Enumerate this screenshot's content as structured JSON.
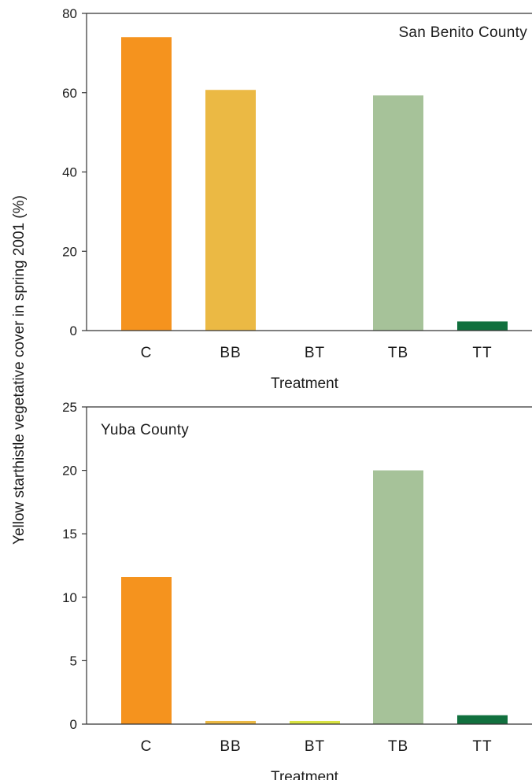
{
  "chart_data": [
    {
      "type": "bar",
      "title": "San Benito County",
      "xlabel": "Treatment",
      "categories": [
        "C",
        "BB",
        "BT",
        "TB",
        "TT"
      ],
      "values": [
        74,
        60.7,
        0,
        59.3,
        2.3
      ],
      "colors": [
        "#F5931E",
        "#EBB944",
        "#D9E342",
        "#A6C299",
        "#11703E"
      ],
      "ylim": [
        0,
        80
      ],
      "yticks": [
        0,
        20,
        40,
        60,
        80
      ],
      "title_position": "top-right"
    },
    {
      "type": "bar",
      "title": "Yuba County",
      "xlabel": "Treatment",
      "categories": [
        "C",
        "BB",
        "BT",
        "TB",
        "TT"
      ],
      "values": [
        11.6,
        0.25,
        0.25,
        20,
        0.7
      ],
      "colors": [
        "#F5931E",
        "#EBB944",
        "#D9E342",
        "#A6C299",
        "#11703E"
      ],
      "ylim": [
        0,
        25
      ],
      "yticks": [
        0,
        5,
        10,
        15,
        20,
        25
      ],
      "title_position": "top-left"
    }
  ],
  "shared_ylabel": "Yellow starthistle vegetative cover in spring 2001 (%)"
}
